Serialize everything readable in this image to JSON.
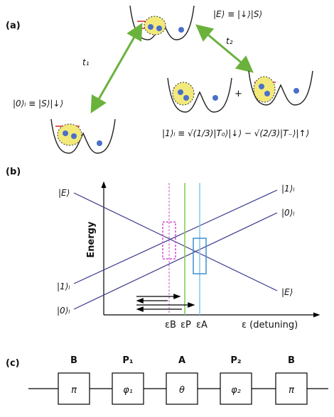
{
  "panel_a": {
    "label": "(a)",
    "t1": "t₁",
    "t2": "t₂",
    "state_E": "|E⟩ ≡ |↓⟩|S⟩",
    "state_0": "|0⟩ₗ ≡ |S⟩|↓⟩",
    "plus": "+",
    "state_1": "|1⟩ₗ ≡ √(1/3)|T₀⟩|↓⟩ − √(2/3)|T₋⟩|↑⟩"
  },
  "panel_b": {
    "label": "(b)",
    "y_axis": "Energy",
    "x_axis": "ε (detuning)",
    "left_E": "|E⟩",
    "left_1": "|1⟩ₗ",
    "left_0": "|0⟩ₗ",
    "right_1": "|1⟩ₗ",
    "right_0": "|0⟩ₗ",
    "right_E": "|E⟩",
    "eps_B": "εB",
    "eps_P": "εP",
    "eps_A": "εA"
  },
  "panel_c": {
    "label": "(c)",
    "gates": [
      {
        "name": "B",
        "symbol": "π"
      },
      {
        "name": "P₁",
        "symbol": "φ₁"
      },
      {
        "name": "A",
        "symbol": "θ"
      },
      {
        "name": "P₂",
        "symbol": "φ₂"
      },
      {
        "name": "B",
        "symbol": "π"
      }
    ]
  }
}
